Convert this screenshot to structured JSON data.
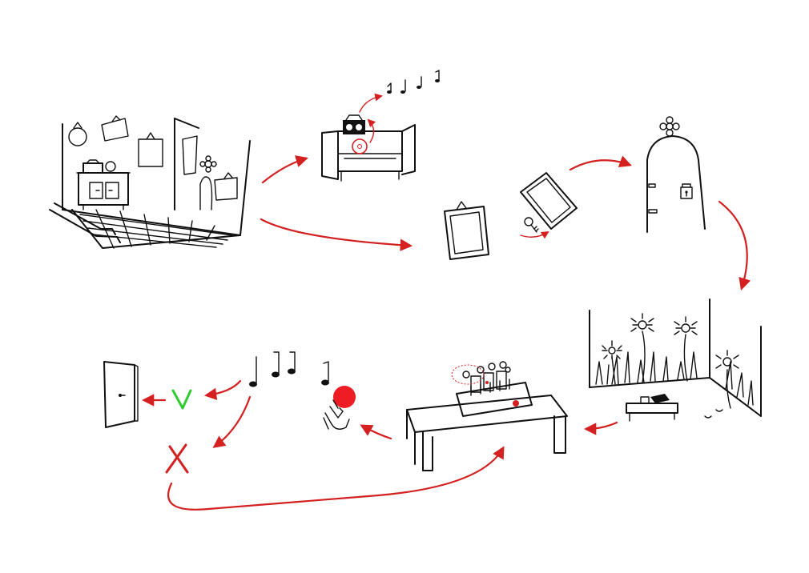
{
  "colors": {
    "ink": "#111111",
    "accent": "#d42020",
    "success": "#2ecc2e",
    "error": "#d42020",
    "background": "#ffffff"
  },
  "steps": [
    {
      "id": "room",
      "icon": "room-with-checkered-floor-icon"
    },
    {
      "id": "cabinet",
      "icon": "open-cabinet-with-radio-icon"
    },
    {
      "id": "frames-and-key",
      "icon": "picture-frames-and-key-icon"
    },
    {
      "id": "locked-door",
      "icon": "arched-door-with-lock-icon"
    },
    {
      "id": "flower-room",
      "icon": "room-with-flowers-icon"
    },
    {
      "id": "table-puzzle",
      "icon": "table-with-flower-box-icon"
    },
    {
      "id": "press-button",
      "icon": "hand-pressing-red-button-icon"
    },
    {
      "id": "melody",
      "icon": "music-notes-icon"
    },
    {
      "id": "success",
      "icon": "check-mark-icon"
    },
    {
      "id": "failure",
      "icon": "cross-mark-icon"
    },
    {
      "id": "exit-door",
      "icon": "exit-door-icon"
    }
  ]
}
